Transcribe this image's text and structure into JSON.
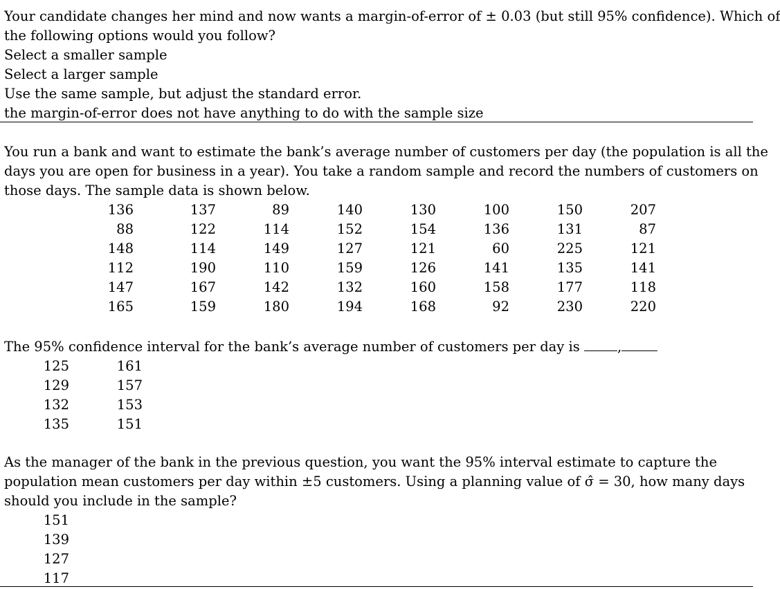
{
  "q1": {
    "question_line1": "Your candidate changes her mind and now wants a margin-of-error of ± 0.03 (but still 95% confidence). Which of",
    "question_line2": "the following options would you follow?",
    "options": [
      "Select a smaller sample",
      "Select a larger sample",
      "Use the same sample, but adjust the standard error.",
      "the margin-of-error does not have anything to do with the sample size"
    ]
  },
  "q2": {
    "intro_line1": "You run a bank and want to estimate the bank’s average number of customers per day (the population is all the",
    "intro_line2": "days you are open for business in a year). You take a random sample and record the numbers of customers on",
    "intro_line3": "those days. The sample data is shown below.",
    "data_rows": [
      [
        "136",
        "137",
        "89",
        "140",
        "130",
        "100",
        "150",
        "207"
      ],
      [
        "88",
        "122",
        "114",
        "152",
        "154",
        "136",
        "131",
        "87"
      ],
      [
        "148",
        "114",
        "149",
        "127",
        "121",
        "60",
        "225",
        "121"
      ],
      [
        "112",
        "190",
        "110",
        "159",
        "126",
        "141",
        "135",
        "141"
      ],
      [
        "147",
        "167",
        "142",
        "132",
        "160",
        "158",
        "177",
        "118"
      ],
      [
        "165",
        "159",
        "180",
        "194",
        "168",
        "92",
        "230",
        "220"
      ]
    ],
    "prompt": "The 95% confidence interval for the bank’s average number of customers per day is",
    "blank_separator": ",",
    "options": [
      [
        "125",
        "161"
      ],
      [
        "129",
        "157"
      ],
      [
        "132",
        "153"
      ],
      [
        "135",
        "151"
      ]
    ]
  },
  "q3": {
    "question_line1": "As the manager of the bank in the previous question, you want the 95% interval estimate to capture the",
    "question_line2": "population mean customers per day within ±5 customers.  Using a planning value of σ̂ = 30, how many days",
    "question_line3": "should you include in the sample?",
    "options": [
      "151",
      "139",
      "127",
      "117"
    ]
  }
}
